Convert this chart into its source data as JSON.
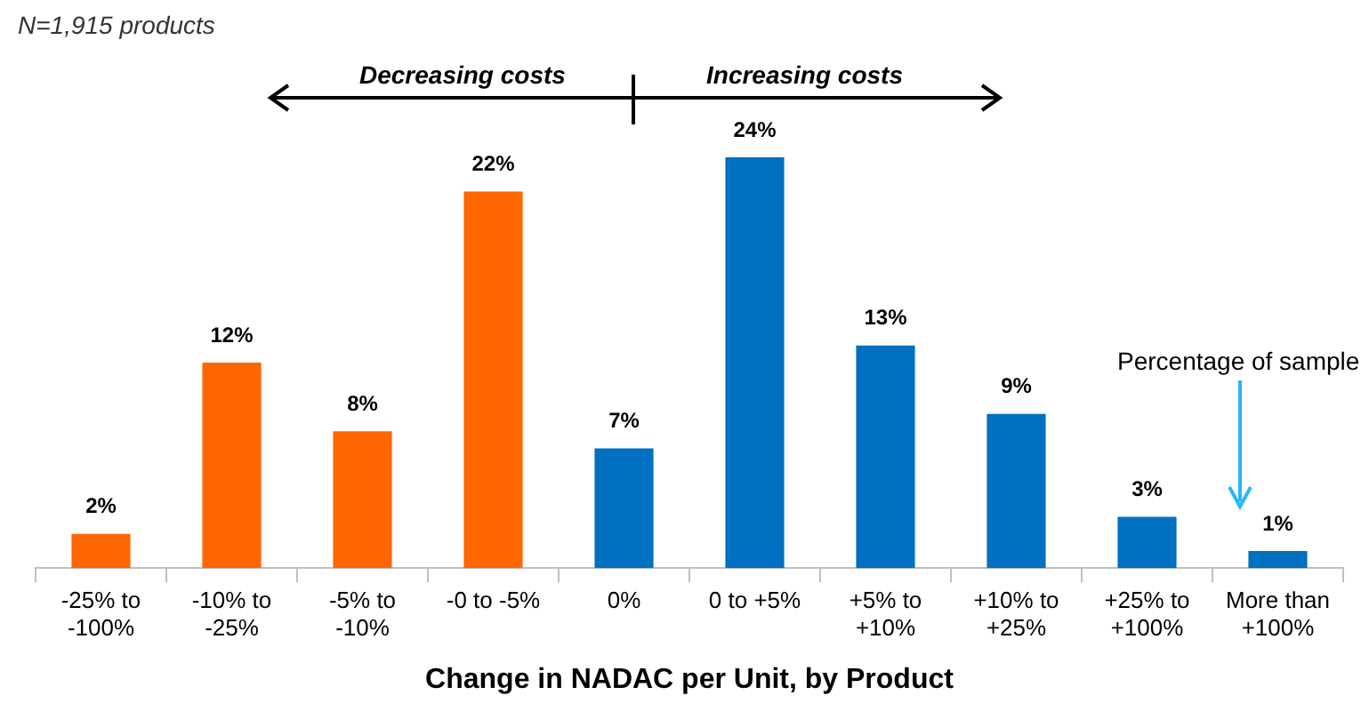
{
  "chart_data": {
    "type": "bar",
    "xlabel": "Change in NADAC per Unit, by Product",
    "categories": [
      "-25% to -100%",
      "-10% to -25%",
      "-5% to -10%",
      "-0 to -5%",
      "0%",
      "0 to +5%",
      "+5% to +10%",
      "+10% to +25%",
      "+25% to +100%",
      "More than +100%"
    ],
    "values": [
      2,
      12,
      8,
      22,
      7,
      24,
      13,
      9,
      3,
      1
    ],
    "colors": [
      "#ff6600",
      "#ff6600",
      "#ff6600",
      "#ff6600",
      "#0070c0",
      "#0070c0",
      "#0070c0",
      "#0070c0",
      "#0070c0",
      "#0070c0"
    ],
    "value_labels": [
      "2%",
      "12%",
      "8%",
      "22%",
      "7%",
      "24%",
      "13%",
      "9%",
      "3%",
      "1%"
    ],
    "annotations": [
      "N=1,915 products",
      "Decreasing costs",
      "Increasing costs",
      "Percentage of sample"
    ],
    "grid": false,
    "legend": false
  }
}
